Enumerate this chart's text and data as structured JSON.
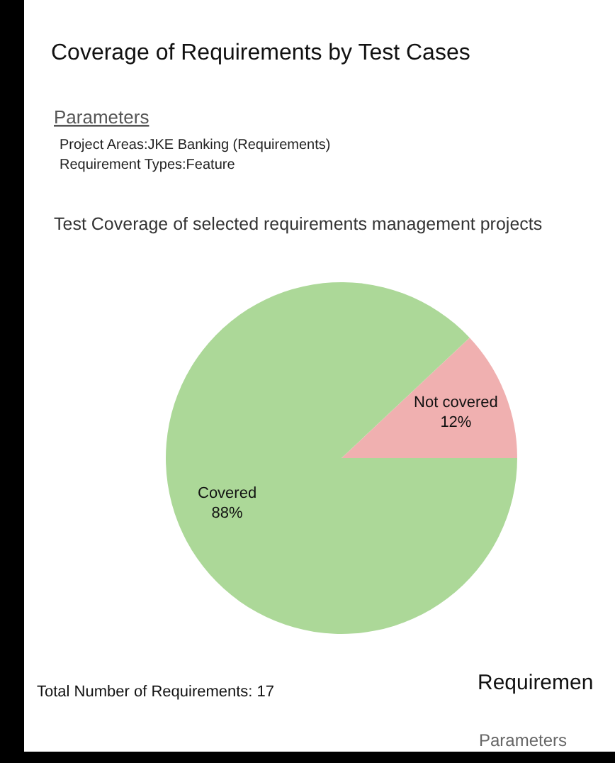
{
  "chart_data": {
    "type": "pie",
    "title": "Coverage of Requirements by Test Cases",
    "subtitle": "Test Coverage of selected requirements management projects",
    "categories": [
      "Not covered",
      "Covered"
    ],
    "values": [
      12,
      88
    ],
    "colors": [
      "#f0b0b0",
      "#acd898"
    ],
    "value_labels": [
      "12%",
      "88%"
    ],
    "annotations": [
      "Parameters",
      "Project Areas:JKE Banking (Requirements)",
      "Requirement Types:Feature",
      "Total Number of Requirements: 17",
      "Requiremen",
      "Parameters"
    ]
  }
}
